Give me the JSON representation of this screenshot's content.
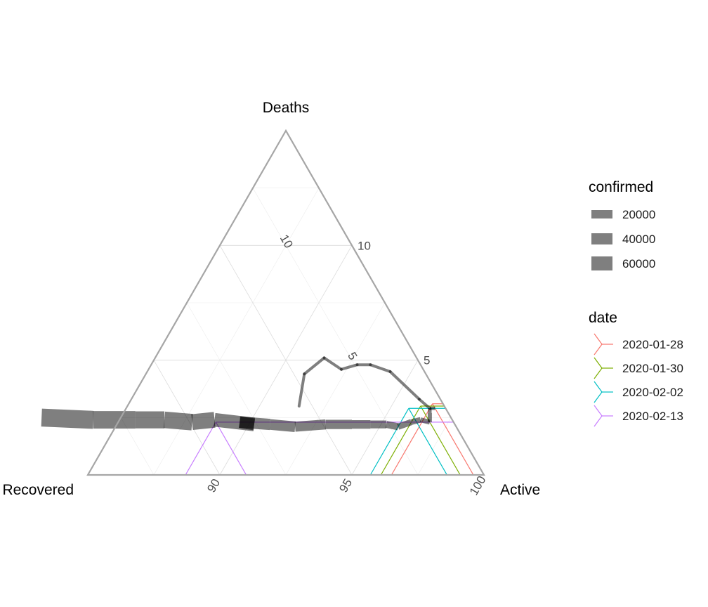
{
  "chart_data": {
    "type": "ternary",
    "axes": {
      "top": {
        "label": "Deaths",
        "ticks": [
          5,
          10
        ]
      },
      "left": {
        "label": "Recovered",
        "ticks": [
          90,
          95
        ]
      },
      "right": {
        "label": "Active",
        "ticks": [
          100
        ]
      },
      "tick_labels": [
        "5",
        "10",
        "10",
        "5",
        "90",
        "95",
        "100"
      ]
    },
    "grid": true,
    "path": {
      "description_fields": [
        "active",
        "recovered",
        "deaths",
        "confirmed"
      ],
      "points": [
        {
          "active": 96.7,
          "recovered": 0.4,
          "deaths": 2.9,
          "confirmed": 5500
        },
        {
          "active": 96.5,
          "recovered": 0.6,
          "deaths": 2.9,
          "confirmed": 6000
        },
        {
          "active": 96.6,
          "recovered": 0.7,
          "deaths": 2.7,
          "confirmed": 7700
        },
        {
          "active": 96.8,
          "recovered": 0.9,
          "deaths": 2.3,
          "confirmed": 11300
        },
        {
          "active": 96.4,
          "recovered": 1.2,
          "deaths": 2.4,
          "confirmed": 14400
        },
        {
          "active": 96.1,
          "recovered": 1.6,
          "deaths": 2.3,
          "confirmed": 17200
        },
        {
          "active": 95.7,
          "recovered": 2.2,
          "deaths": 2.1,
          "confirmed": 20400
        },
        {
          "active": 95.2,
          "recovered": 2.6,
          "deaths": 2.2,
          "confirmed": 24500
        },
        {
          "active": 94.6,
          "recovered": 3.2,
          "deaths": 2.2,
          "confirmed": 28000
        },
        {
          "active": 93.9,
          "recovered": 3.9,
          "deaths": 2.2,
          "confirmed": 31200
        },
        {
          "active": 92.9,
          "recovered": 4.9,
          "deaths": 2.2,
          "confirmed": 34900
        },
        {
          "active": 91.8,
          "recovered": 6.1,
          "deaths": 2.1,
          "confirmed": 37500
        },
        {
          "active": 90.8,
          "recovered": 7.0,
          "deaths": 2.2,
          "confirmed": 40500
        },
        {
          "active": 89.6,
          "recovered": 8.1,
          "deaths": 2.3,
          "confirmed": 43100
        },
        {
          "active": 90.2,
          "recovered": 7.6,
          "deaths": 2.2,
          "confirmed": 45200
        },
        {
          "active": 88.6,
          "recovered": 9.0,
          "deaths": 2.4,
          "confirmed": 60300
        },
        {
          "active": 87.8,
          "recovered": 9.9,
          "deaths": 2.3,
          "confirmed": 64400
        },
        {
          "active": 86.7,
          "recovered": 10.9,
          "deaths": 2.4,
          "confirmed": 67100
        },
        {
          "active": 85.6,
          "recovered": 12.0,
          "deaths": 2.4,
          "confirmed": 69000
        },
        {
          "active": 84.0,
          "recovered": 13.6,
          "deaths": 2.4,
          "confirmed": 71200
        },
        {
          "active": 82.0,
          "recovered": 15.5,
          "deaths": 2.5,
          "confirmed": 73200
        }
      ]
    },
    "early_segment": {
      "points": [
        {
          "active": 91.5,
          "recovered": 5.5,
          "deaths": 3.0
        },
        {
          "active": 91.0,
          "recovered": 4.6,
          "deaths": 4.4
        },
        {
          "active": 91.4,
          "recovered": 3.5,
          "deaths": 5.1
        },
        {
          "active": 92.3,
          "recovered": 3.1,
          "deaths": 4.6
        },
        {
          "active": 92.8,
          "recovered": 2.4,
          "deaths": 4.8
        },
        {
          "active": 93.3,
          "recovered": 1.9,
          "deaths": 4.8
        },
        {
          "active": 94.2,
          "recovered": 1.3,
          "deaths": 4.5
        },
        {
          "active": 95.9,
          "recovered": 0.8,
          "deaths": 3.3
        },
        {
          "active": 96.5,
          "recovered": 0.6,
          "deaths": 2.9
        }
      ],
      "width": 4
    },
    "confirmed_legend": {
      "title": "confirmed",
      "entries": [
        {
          "label": "20000",
          "value": 20000
        },
        {
          "label": "40000",
          "value": 40000
        },
        {
          "label": "60000",
          "value": 60000
        }
      ],
      "color": "#7f7f7f"
    },
    "date_legend": {
      "title": "date",
      "entries": [
        {
          "label": "2020-01-28",
          "color": "#F8766D",
          "active": 96.5,
          "recovered": 0.4,
          "deaths": 3.1
        },
        {
          "label": "2020-01-30",
          "color": "#7CAE00",
          "active": 96.1,
          "recovered": 0.9,
          "deaths": 3.0
        },
        {
          "label": "2020-02-02",
          "color": "#00BFC4",
          "active": 95.7,
          "recovered": 1.4,
          "deaths": 2.9
        },
        {
          "label": "2020-02-13",
          "color": "#C77CFF",
          "active": 88.7,
          "recovered": 9.0,
          "deaths": 2.3
        }
      ]
    }
  }
}
